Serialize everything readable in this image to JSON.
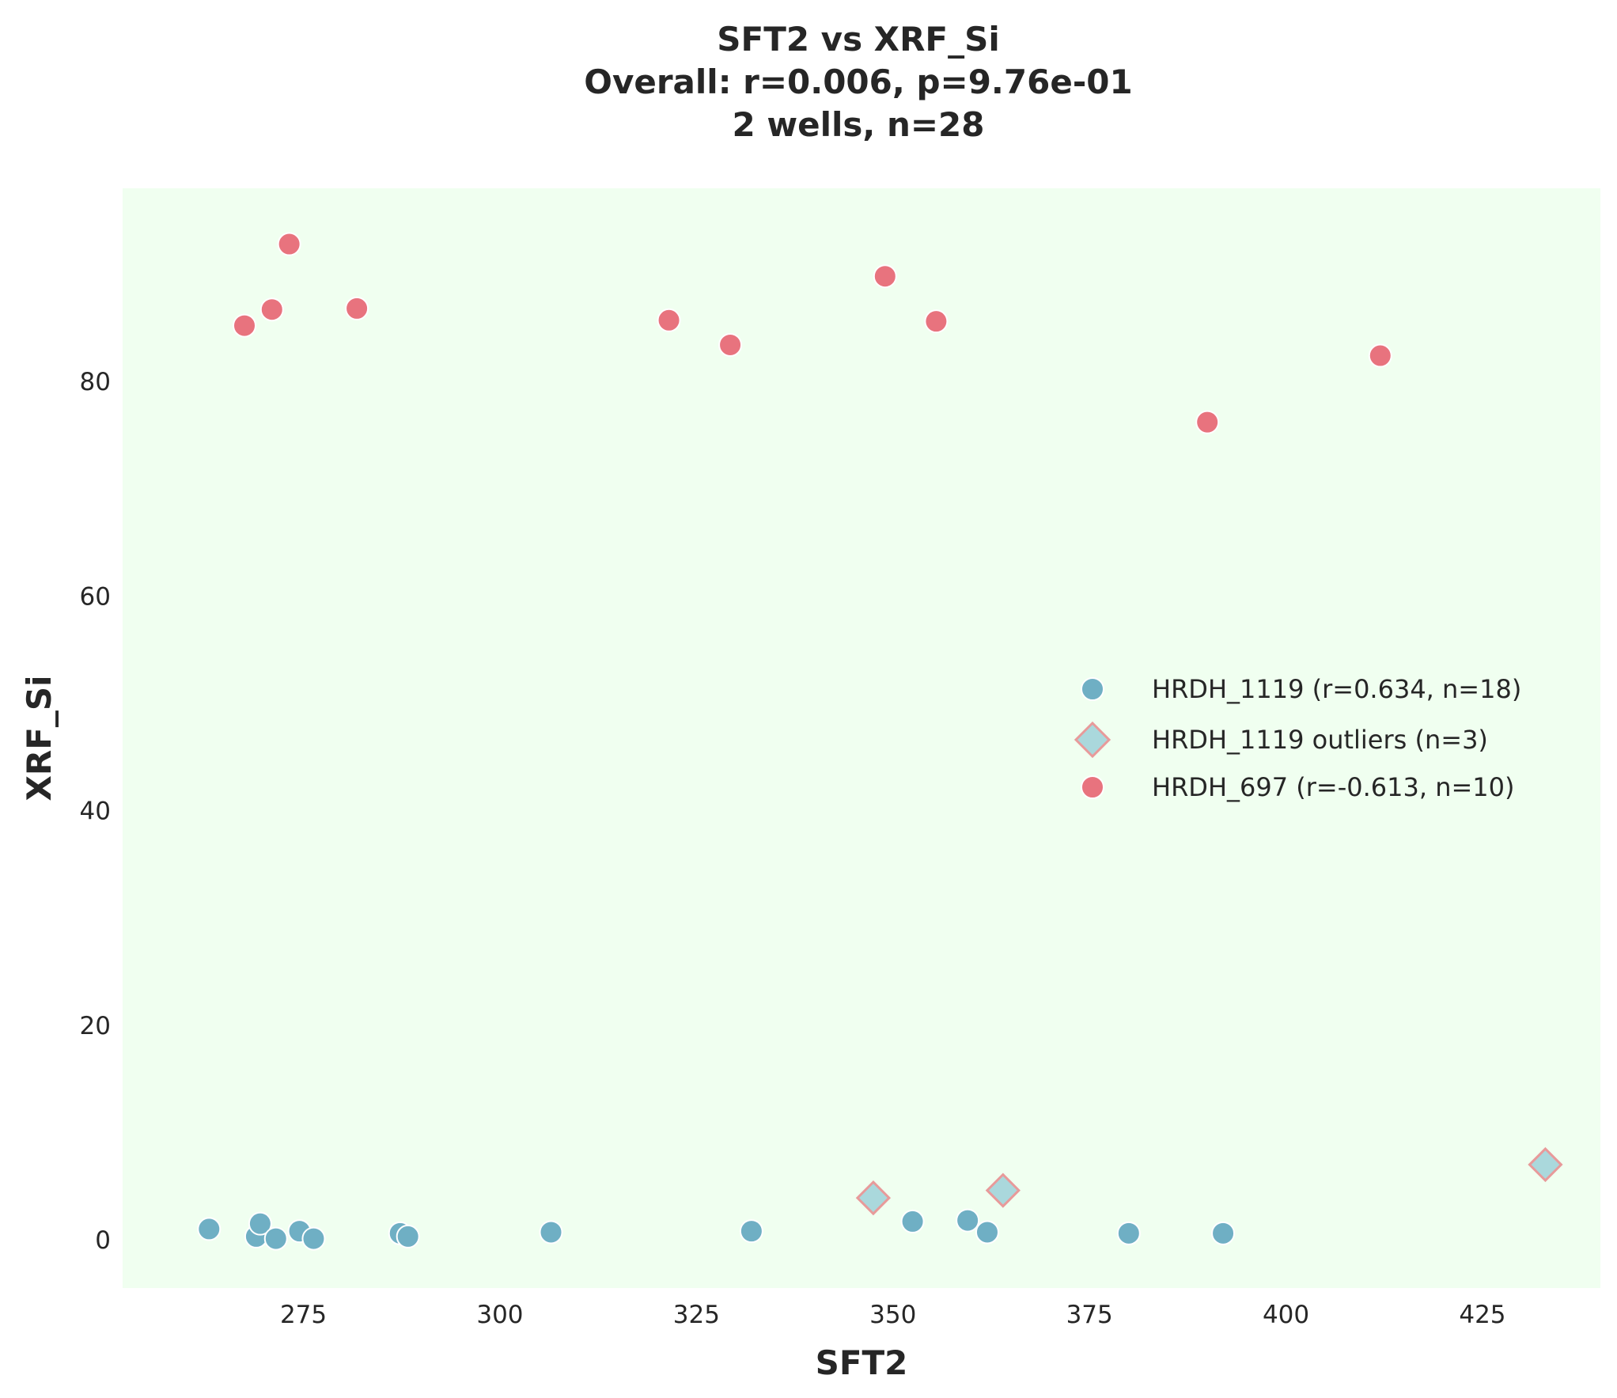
{
  "chart_data": {
    "type": "scatter",
    "title": [
      "SFT2 vs XRF_Si",
      "Overall: r=0.006, p=9.76e-01",
      "2 wells, n=28"
    ],
    "xlabel": "SFT2",
    "ylabel": "XRF_Si",
    "xlim": [
      252,
      440
    ],
    "ylim": [
      -4.5,
      98
    ],
    "xticks": [
      275,
      300,
      325,
      350,
      375,
      400,
      425
    ],
    "yticks": [
      0,
      20,
      40,
      60,
      80
    ],
    "grid": false,
    "background": "#f0fff0",
    "legend_position": "center-right",
    "series": [
      {
        "name": "HRDH_1119 (r=0.634, n=18)",
        "marker": "circle",
        "color": "#6fafc4",
        "points": [
          [
            263,
            1.0
          ],
          [
            269,
            0.3
          ],
          [
            269.5,
            1.5
          ],
          [
            271.5,
            0.1
          ],
          [
            274.5,
            0.8
          ],
          [
            276.3,
            0.1
          ],
          [
            287.3,
            0.6
          ],
          [
            288.3,
            0.3
          ],
          [
            306.5,
            0.7
          ],
          [
            332,
            0.8
          ],
          [
            352.5,
            1.7
          ],
          [
            359.5,
            1.8
          ],
          [
            362,
            0.7
          ],
          [
            380,
            0.6
          ],
          [
            392,
            0.6
          ]
        ]
      },
      {
        "name": "HRDH_1119 outliers (n=3)",
        "marker": "diamond",
        "color": "#aad8dc",
        "edge_color": "#e89a9a",
        "points": [
          [
            347.5,
            3.9
          ],
          [
            364,
            4.6
          ],
          [
            433,
            7.0
          ]
        ]
      },
      {
        "name": "HRDH_697 (r=-0.613, n=10)",
        "marker": "circle",
        "color": "#e8737e",
        "points": [
          [
            267.5,
            85.2
          ],
          [
            271,
            86.7
          ],
          [
            273.2,
            92.8
          ],
          [
            281.8,
            86.8
          ],
          [
            321.5,
            85.7
          ],
          [
            329.3,
            83.4
          ],
          [
            349,
            89.8
          ],
          [
            355.5,
            85.6
          ],
          [
            390,
            76.2
          ],
          [
            412,
            82.4
          ]
        ]
      }
    ]
  }
}
